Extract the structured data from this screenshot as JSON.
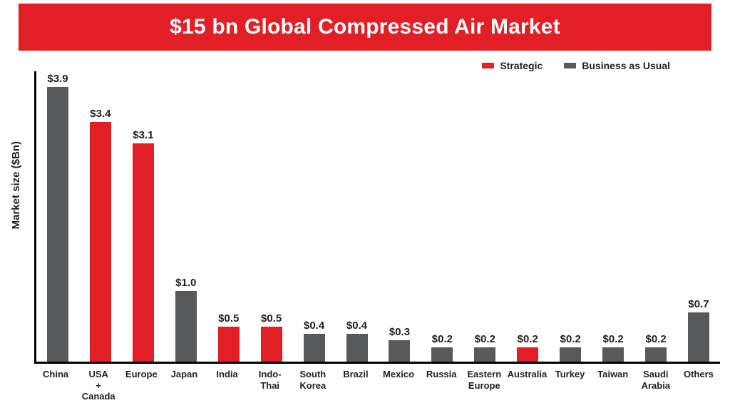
{
  "header": {
    "title": "$15 bn Global Compressed Air Market",
    "banner_color": "#e21f26"
  },
  "legend": {
    "items": [
      {
        "label": "Strategic",
        "color": "#e21f26"
      },
      {
        "label": "Business as Usual",
        "color": "#58595b"
      }
    ]
  },
  "chart_data": {
    "type": "bar",
    "title": "$15 bn Global Compressed Air Market",
    "xlabel": "",
    "ylabel": "Market size ($Bn)",
    "ylim": [
      0,
      4.15
    ],
    "grid": false,
    "legend_position": "top-right",
    "categories": [
      "China",
      "USA\n+\nCanada",
      "Europe",
      "Japan",
      "India",
      "Indo-\nThai",
      "South\nKorea",
      "Brazil",
      "Mexico",
      "Russia",
      "Eastern\nEurope",
      "Australia",
      "Turkey",
      "Taiwan",
      "Saudi\nArabia",
      "Others"
    ],
    "values": [
      3.9,
      3.4,
      3.1,
      1.0,
      0.5,
      0.5,
      0.4,
      0.4,
      0.3,
      0.2,
      0.2,
      0.2,
      0.2,
      0.2,
      0.2,
      0.7
    ],
    "data_labels": [
      "$3.9",
      "$3.4",
      "$3.1",
      "$1.0",
      "$0.5",
      "$0.5",
      "$0.4",
      "$0.4",
      "$0.3",
      "$0.2",
      "$0.2",
      "$0.2",
      "$0.2",
      "$0.2",
      "$0.2",
      "$0.7"
    ],
    "series_of": [
      "business",
      "strategic",
      "strategic",
      "business",
      "strategic",
      "strategic",
      "business",
      "business",
      "business",
      "business",
      "business",
      "strategic",
      "business",
      "business",
      "business",
      "business"
    ],
    "series_colors": {
      "strategic": "#e21f26",
      "business": "#58595b"
    }
  }
}
